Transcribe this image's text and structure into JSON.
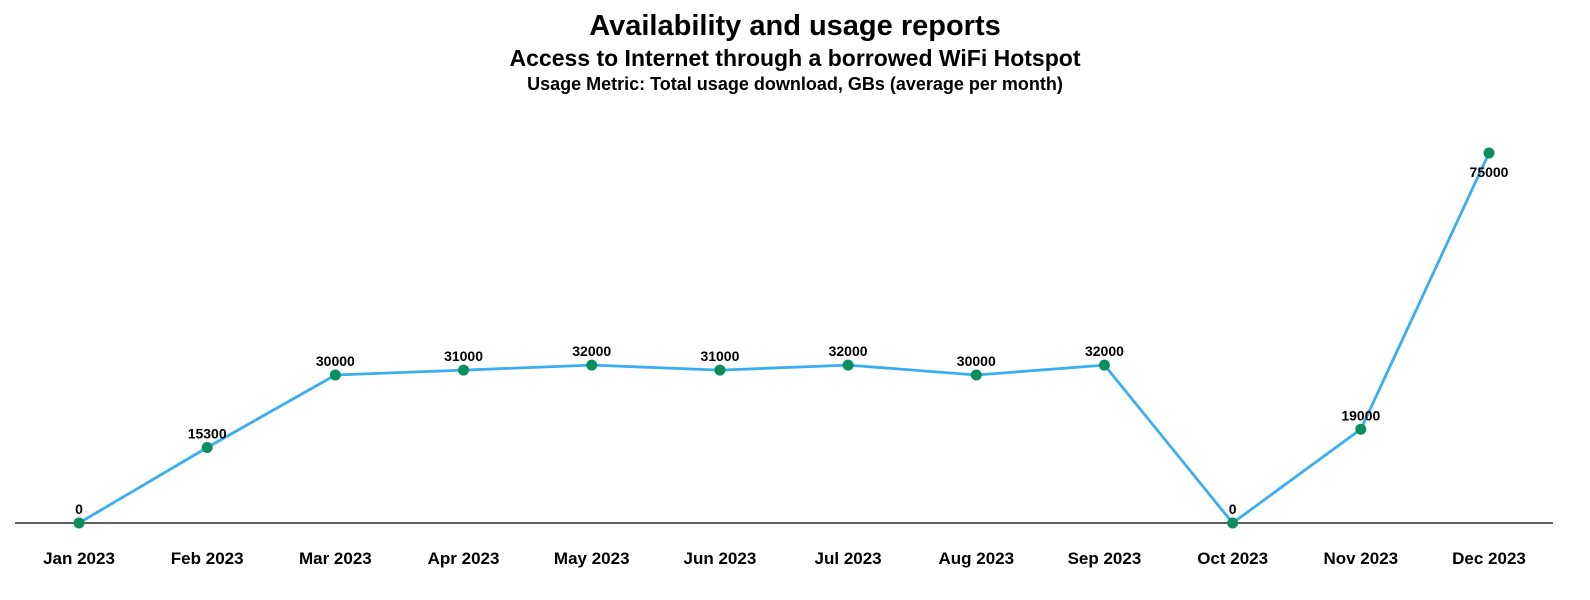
{
  "chart_data": {
    "type": "line",
    "title": "Availability and usage reports",
    "subtitle": "Access to Internet through a borrowed WiFi Hotspot",
    "metric_label": "Usage Metric: Total usage download, GBs (average per month)",
    "categories": [
      "Jan 2023",
      "Feb 2023",
      "Mar 2023",
      "Apr 2023",
      "May 2023",
      "Jun 2023",
      "Jul 2023",
      "Aug 2023",
      "Sep 2023",
      "Oct 2023",
      "Nov 2023",
      "Dec 2023"
    ],
    "series": [
      {
        "values": [
          0,
          15300,
          30000,
          31000,
          32000,
          31000,
          32000,
          30000,
          32000,
          0,
          19000,
          75000
        ],
        "line_color": "#3aaef0",
        "marker_color": "#0a8f5c"
      }
    ],
    "ylim": [
      0,
      75000
    ],
    "grid": false,
    "legend": "none"
  }
}
